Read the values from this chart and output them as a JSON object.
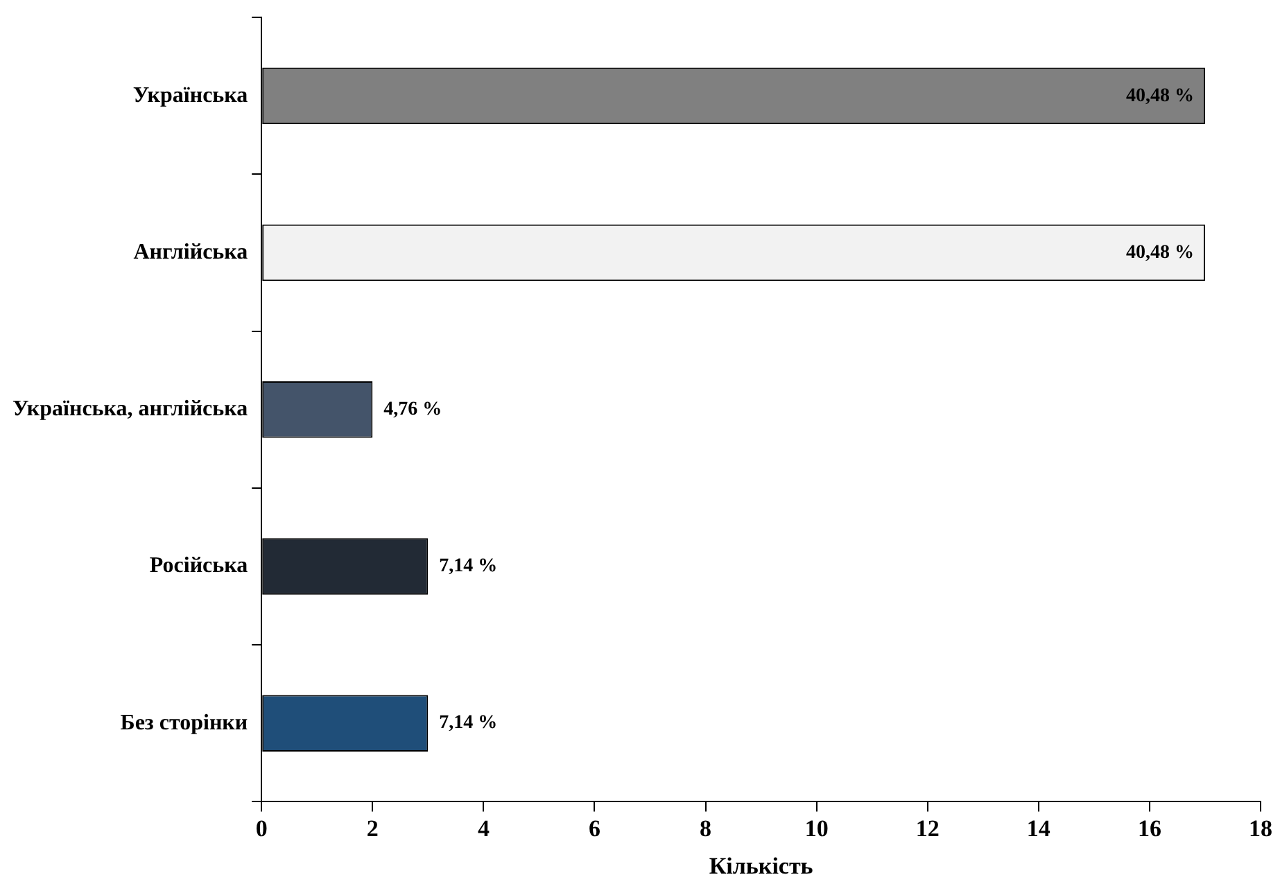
{
  "chart_data": {
    "type": "bar",
    "orientation": "horizontal",
    "xlabel": "Кількість",
    "categories": [
      "Українська",
      "Англійська",
      "Українська, англійська",
      "Російська",
      "Без сторінки"
    ],
    "values": [
      17,
      17,
      2,
      3,
      3
    ],
    "colors": [
      "#808080",
      "#f2f2f2",
      "#44546a",
      "#222a35",
      "#1f4e79"
    ],
    "annotations": [
      {
        "text": "40,48 %",
        "x": 17,
        "y": "Українська"
      },
      {
        "text": "40,48 %",
        "x": 17,
        "y": "Англійська"
      },
      {
        "text": "4,76 %",
        "x": 2,
        "y": "Українська, англійська"
      },
      {
        "text": "7,14 %",
        "x": 3,
        "y": "Російська"
      },
      {
        "text": "7,14 %",
        "x": 3,
        "y": "Без сторінки"
      }
    ],
    "xlim": [
      0,
      18
    ],
    "xticks": [
      0,
      2,
      4,
      6,
      8,
      10,
      12,
      14,
      16,
      18
    ],
    "grid": false,
    "legend": false
  }
}
